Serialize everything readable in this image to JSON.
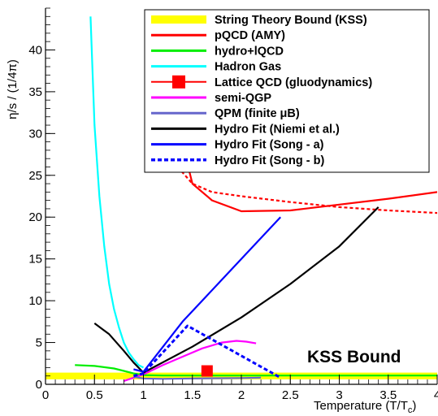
{
  "chart_data": {
    "type": "line",
    "xlabel": "Temperature (T/T",
    "xlabel_sub": "c",
    "xlabel_close": ")",
    "ylabel": "η/s / (1/4π)",
    "xlim": [
      0,
      4
    ],
    "ylim": [
      0,
      45
    ],
    "x_ticks": [
      0,
      0.5,
      1,
      1.5,
      2,
      2.5,
      3,
      3.5,
      4
    ],
    "x_tick_labels": [
      "0",
      "0.5",
      "1",
      "1.5",
      "2",
      "2.5",
      "3",
      "3.5",
      "4"
    ],
    "y_ticks": [
      0,
      5,
      10,
      15,
      20,
      25,
      30,
      35,
      40
    ],
    "y_tick_labels": [
      "0",
      "5",
      "10",
      "15",
      "20",
      "25",
      "30",
      "35",
      "40"
    ],
    "grid": false,
    "legend_position": "top-right",
    "annotation": "KSS Bound",
    "series": [
      {
        "name": "String Theory Bound (KSS)",
        "style": "band",
        "color": "#ffff00",
        "x": [
          0,
          4
        ],
        "y": [
          1,
          1
        ]
      },
      {
        "name": "pQCD (AMY)",
        "style": "solid",
        "color": "#ff0000",
        "x": [
          1.35,
          1.5,
          1.7,
          2.0,
          2.5,
          3.0,
          3.5,
          4.0
        ],
        "y": [
          31,
          24,
          22,
          20.7,
          20.8,
          21.5,
          22.2,
          23
        ]
      },
      {
        "name": "hydro+lQCD",
        "style": "solid",
        "color": "#00ee00",
        "x": [
          0.3,
          0.5,
          0.7,
          0.8,
          0.9,
          1.0,
          1.2,
          1.5,
          2.0,
          2.5,
          3.0,
          3.5,
          4.0
        ],
        "y": [
          2.3,
          2.2,
          1.9,
          1.6,
          1.3,
          1.1,
          1.05,
          1.05,
          1.05,
          1.05,
          1.05,
          1.05,
          1.05
        ]
      },
      {
        "name": "Hadron Gas",
        "style": "solid",
        "color": "#00ffff",
        "x": [
          0.46,
          0.5,
          0.55,
          0.6,
          0.65,
          0.7,
          0.75,
          0.8,
          0.85,
          0.9,
          0.95,
          1.0
        ],
        "y": [
          44,
          31,
          22.5,
          16.5,
          12,
          9,
          6.8,
          5,
          3.8,
          3,
          2.3,
          2
        ]
      },
      {
        "name": "Lattice QCD (gluodynamics)",
        "style": "marker",
        "color": "#ff0000",
        "x": [
          1.65
        ],
        "y": [
          1.6
        ]
      },
      {
        "name": "semi-QGP",
        "style": "solid",
        "color": "#ff00ff",
        "x": [
          0.8,
          1.0,
          1.2,
          1.4,
          1.6,
          1.8,
          1.95,
          2.05,
          2.15
        ],
        "y": [
          0.4,
          1.2,
          2.3,
          3.3,
          4.3,
          5.0,
          5.2,
          5.1,
          4.9
        ]
      },
      {
        "name": "QPM (finite μB)",
        "style": "solid",
        "color": "#6666cc",
        "x": [
          0.9,
          1.0,
          1.2,
          1.5,
          2.0,
          2.2
        ],
        "y": [
          0.9,
          0.7,
          0.65,
          0.7,
          0.75,
          0.8
        ]
      },
      {
        "name": "Hydro Fit (Niemi et al.)",
        "style": "solid",
        "color": "#000000",
        "x": [
          0.5,
          0.65,
          0.8,
          0.9,
          1.0,
          1.5,
          2.0,
          2.5,
          3.0,
          3.4
        ],
        "y": [
          7.3,
          6.0,
          4.0,
          2.6,
          1.4,
          4.5,
          8.0,
          12.0,
          16.5,
          21.2
        ]
      },
      {
        "name": "Hydro Fit (Song - a)",
        "style": "solid",
        "color": "#0000ff",
        "x": [
          0.9,
          1.0,
          1.4,
          1.8,
          2.4
        ],
        "y": [
          1.8,
          1.5,
          7.5,
          12.5,
          20
        ]
      },
      {
        "name": "Hydro Fit (Song - b)",
        "style": "dotted",
        "color": "#0000ff",
        "x": [
          0.9,
          1.0,
          1.45,
          2.4
        ],
        "y": [
          1.0,
          1.3,
          7.0,
          0.8
        ]
      }
    ],
    "dashed_curve": {
      "name": "",
      "style": "dashed",
      "color": "#ff0000",
      "x": [
        1.2,
        1.25,
        1.3,
        1.35,
        1.5,
        1.7,
        2.0,
        2.5,
        3.0,
        3.5,
        4.0
      ],
      "y": [
        36,
        31,
        28,
        26,
        24,
        23,
        22.5,
        21.8,
        21.2,
        20.8,
        20.5
      ]
    }
  }
}
